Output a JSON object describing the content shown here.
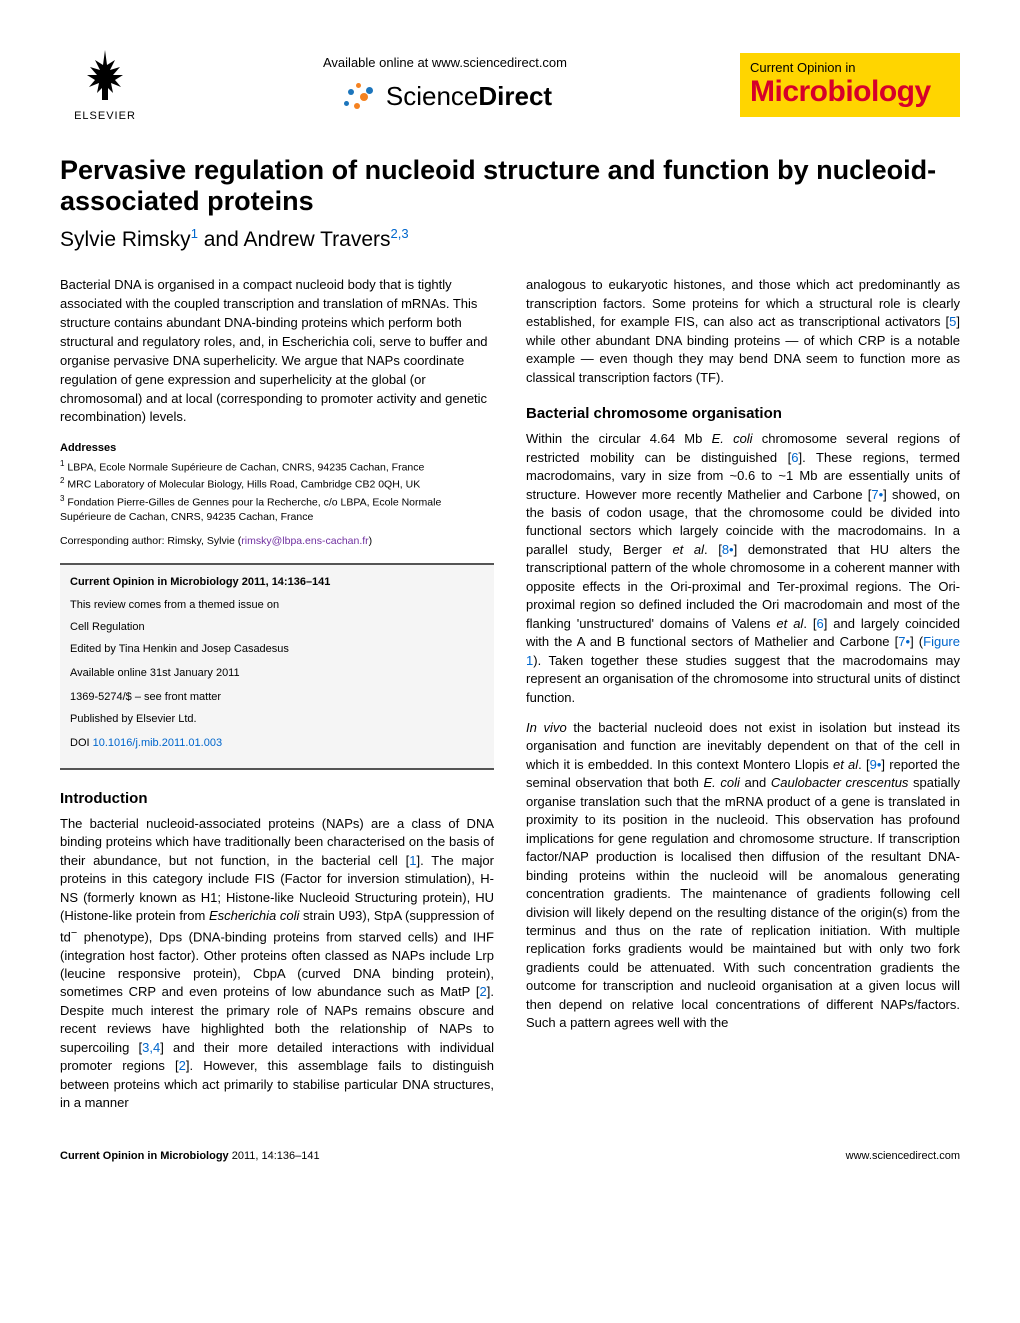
{
  "header": {
    "elsevier_label": "ELSEVIER",
    "available_online": "Available online at www.sciencedirect.com",
    "sciencedirect_prefix": "Science",
    "sciencedirect_suffix": "Direct",
    "journal_top": "Current Opinion in",
    "journal_main": "Microbiology"
  },
  "title": "Pervasive regulation of nucleoid structure and function by nucleoid-associated proteins",
  "authors_html": "Sylvie Rimsky",
  "author1_sup": "1",
  "authors_and": " and Andrew Travers",
  "author2_sup": "2,3",
  "abstract": "Bacterial DNA is organised in a compact nucleoid body that is tightly associated with the coupled transcription and translation of mRNAs. This structure contains abundant DNA-binding proteins which perform both structural and regulatory roles, and, in Escherichia coli, serve to buffer and organise pervasive DNA superhelicity. We argue that NAPs coordinate regulation of gene expression and superhelicity at the global (or chromosomal) and at local (corresponding to promoter activity and genetic recombination) levels.",
  "addresses_heading": "Addresses",
  "addresses": [
    {
      "sup": "1",
      "text": " LBPA, Ecole Normale Supérieure de Cachan, CNRS, 94235 Cachan, France"
    },
    {
      "sup": "2",
      "text": " MRC Laboratory of Molecular Biology, Hills Road, Cambridge CB2 0QH, UK"
    },
    {
      "sup": "3",
      "text": " Fondation Pierre-Gilles de Gennes pour la Recherche, c/o LBPA, Ecole Normale Supérieure de Cachan, CNRS, 94235 Cachan, France"
    }
  ],
  "corresponding_label": "Corresponding author: Rimsky, Sylvie (",
  "corresponding_email": "rimsky@lbpa.ens-cachan.fr",
  "corresponding_close": ")",
  "infobox": {
    "citation": "Current Opinion in Microbiology 2011, 14:136–141",
    "themed1": "This review comes from a themed issue on",
    "themed2": "Cell Regulation",
    "edited": "Edited by Tina Henkin and Josep Casadesus",
    "available": "Available online 31st January 2011",
    "issn": "1369-5274/$ – see front matter",
    "publisher": "Published by Elsevier Ltd.",
    "doi_label": "DOI ",
    "doi": "10.1016/j.mib.2011.01.003"
  },
  "sections": {
    "intro_heading": "Introduction",
    "intro_body_html": "The bacterial nucleoid-associated proteins (NAPs) are a class of DNA binding proteins which have traditionally been characterised on the basis of their abundance, but not function, in the bacterial cell [<span class='ref'>1</span>]. The major proteins in this category include FIS (Factor for inversion stimulation), H-NS (formerly known as H1; Histone-like Nucleoid Structuring protein), HU (Histone-like protein from <span class='ital'>Escherichia coli</span> strain U93), StpA (suppression of td<sup>−</sup> phenotype), Dps (DNA-binding proteins from starved cells) and IHF (integration host factor). Other proteins often classed as NAPs include Lrp (leucine responsive protein), CbpA (curved DNA binding protein), sometimes CRP and even proteins of low abundance such as MatP [<span class='ref'>2</span>]. Despite much interest the primary role of NAPs remains obscure and recent reviews have highlighted both the relationship of NAPs to supercoiling [<span class='ref'>3,4</span>] and their more detailed interactions with individual promoter regions [<span class='ref'>2</span>]. However, this assemblage fails to distinguish between proteins which act primarily to stabilise particular DNA structures, in a manner",
    "right_top_html": "analogous to eukaryotic histones, and those which act predominantly as transcription factors. Some proteins for which a structural role is clearly established, for example FIS, can also act as transcriptional activators [<span class='ref'>5</span>] while other abundant DNA binding proteins — of which CRP is a notable example — even though they may bend DNA seem to function more as classical transcription factors (TF).",
    "bco_heading": "Bacterial chromosome organisation",
    "bco_body_html": "Within the circular 4.64 Mb <span class='ital'>E. coli</span> chromosome several regions of restricted mobility can be distinguished [<span class='ref'>6</span>]. These regions, termed macrodomains, vary in size from ~0.6 to ~1 Mb are essentially units of structure. However more recently Mathelier and Carbone [<span class='ref'>7•</span>] showed, on the basis of codon usage, that the chromosome could be divided into functional sectors which largely coincide with the macrodomains. In a parallel study, Berger <span class='ital'>et al</span>. [<span class='ref'>8•</span>] demonstrated that HU alters the transcriptional pattern of the whole chromosome in a coherent manner with opposite effects in the Ori-proximal and Ter-proximal regions. The Ori-proximal region so defined included the Ori macrodomain and most of the flanking 'unstructured' domains of Valens <span class='ital'>et al</span>. [<span class='ref'>6</span>] and largely coincided with the A and B functional sectors of Mathelier and Carbone [<span class='ref'>7•</span>] (<span class='ref'>Figure 1</span>). Taken together these studies suggest that the macrodomains may represent an organisation of the chromosome into structural units of distinct function.",
    "bco_body2_html": "<span class='ital'>In vivo</span> the bacterial nucleoid does not exist in isolation but instead its organisation and function are inevitably dependent on that of the cell in which it is embedded. In this context Montero Llopis <span class='ital'>et al</span>. [<span class='ref'>9•</span>] reported the seminal observation that both <span class='ital'>E. coli</span> and <span class='ital'>Caulobacter crescentus</span> spatially organise translation such that the mRNA product of a gene is translated in proximity to its position in the nucleoid. This observation has profound implications for gene regulation and chromosome structure. If transcription factor/NAP production is localised then diffusion of the resultant DNA-binding proteins within the nucleoid will be anomalous generating concentration gradients. The maintenance of gradients following cell division will likely depend on the resulting distance of the origin(s) from the terminus and thus on the rate of replication initiation. With multiple replication forks gradients would be maintained but with only two fork gradients could be attenuated. With such concentration gradients the outcome for transcription and nucleoid organisation at a given locus will then depend on relative local concentrations of different NAPs/factors. Such a pattern agrees well with the"
  },
  "footer": {
    "left_bold": "Current Opinion in Microbiology",
    "left_rest": " 2011, 14:136–141",
    "right": "www.sciencedirect.com"
  },
  "colors": {
    "link_blue": "#0066cc",
    "link_purple": "#7030a0",
    "badge_bg": "#ffd500",
    "badge_red": "#d6002a",
    "sd_orange": "#f58220",
    "sd_blue": "#1c75bc"
  }
}
